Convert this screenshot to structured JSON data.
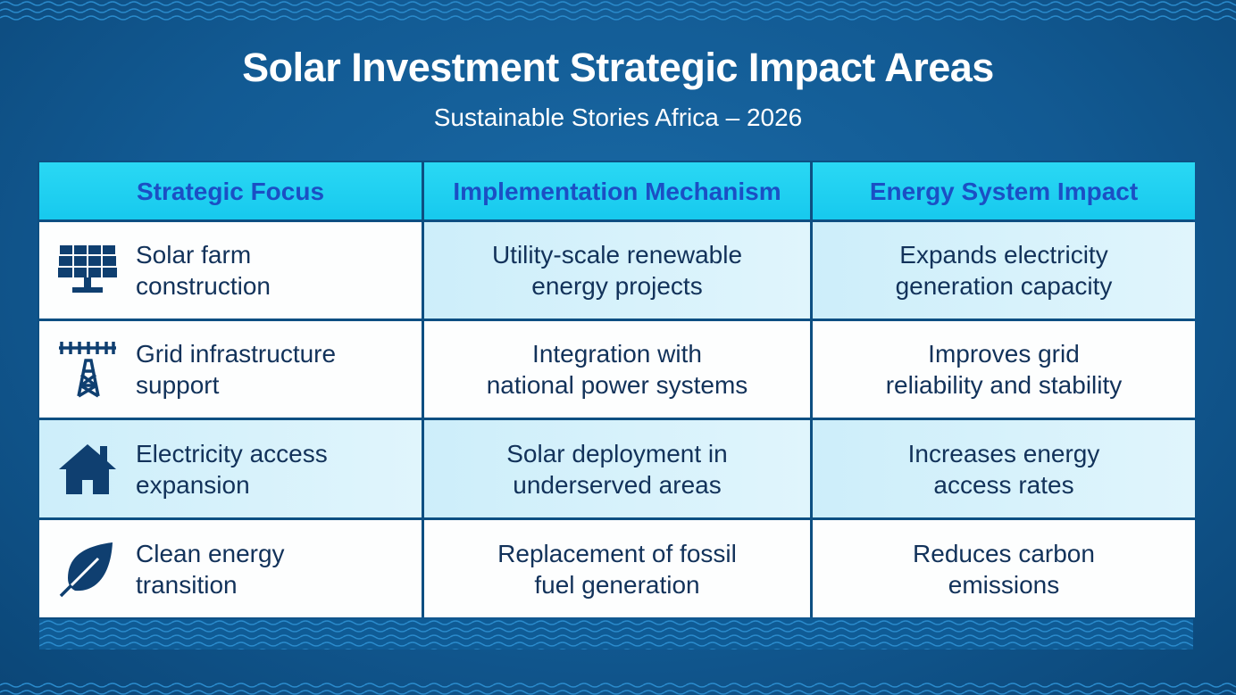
{
  "title": "Solar Investment Strategic Impact Areas",
  "subtitle": "Sustainable Stories Africa – 2026",
  "table": {
    "headers": [
      "Strategic Focus",
      "Implementation Mechanism",
      "Energy System Impact"
    ],
    "rows": [
      {
        "icon": "solar-panel-icon",
        "focus": [
          "Solar farm",
          "construction"
        ],
        "mechanism": [
          "Utility-scale renewable",
          "energy projects"
        ],
        "impact": [
          "Expands electricity",
          "generation capacity"
        ]
      },
      {
        "icon": "transmission-tower-icon",
        "focus": [
          "Grid infrastructure",
          "support"
        ],
        "mechanism": [
          "Integration with",
          "national power systems"
        ],
        "impact": [
          "Improves grid",
          "reliability and stability"
        ]
      },
      {
        "icon": "house-icon",
        "focus": [
          "Electricity access",
          "expansion"
        ],
        "mechanism": [
          "Solar deployment in",
          "underserved areas"
        ],
        "impact": [
          "Increases energy",
          "access rates"
        ]
      },
      {
        "icon": "leaf-icon",
        "focus": [
          "Clean energy",
          "transition"
        ],
        "mechanism": [
          "Replacement of fossil",
          "fuel generation"
        ],
        "impact": [
          "Reduces carbon",
          "emissions"
        ]
      }
    ]
  },
  "colors": {
    "background": "#125a93",
    "header": "#22d3f0",
    "header_text": "#1b4fc4",
    "icon": "#0f3f70",
    "border": "#0d4f82"
  }
}
